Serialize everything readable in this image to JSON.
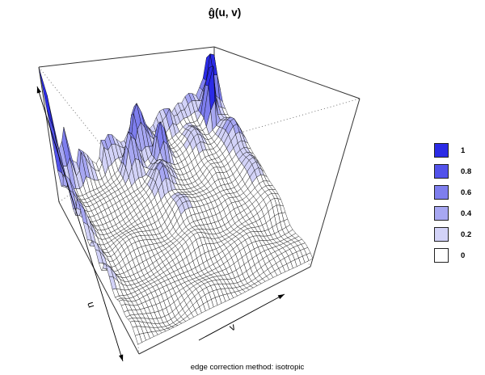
{
  "title": "ĝ(u, v)",
  "caption": "edge correction method: isotropic",
  "axis_labels": {
    "u": "u",
    "v": "v"
  },
  "legend": {
    "entries": [
      {
        "label": "1",
        "color": "#2b2be6"
      },
      {
        "label": "0.8",
        "color": "#5252ea"
      },
      {
        "label": "0.6",
        "color": "#7e7eee"
      },
      {
        "label": "0.4",
        "color": "#a7a7f2"
      },
      {
        "label": "0.2",
        "color": "#d3d3f8"
      },
      {
        "label": "0",
        "color": "#ffffff"
      }
    ]
  },
  "chart_data": {
    "type": "surface3d",
    "title": "ĝ(u, v)",
    "xlabel": "v",
    "ylabel": "u",
    "zlim": [
      0,
      1
    ],
    "legend_labels": [
      "1",
      "0.8",
      "0.6",
      "0.4",
      "0.2",
      "0"
    ],
    "colors": [
      "#2b2be6",
      "#5252ea",
      "#7e7eee",
      "#a7a7f2",
      "#d3d3f8",
      "#ffffff"
    ],
    "thresholds": [
      0.7,
      0.55,
      0.4,
      0.26,
      0.135
    ],
    "grid": {
      "nu": 36,
      "nv": 44
    },
    "model": {
      "floor": {
        "base": 0.05,
        "ripples": [
          {
            "amp": 0.028,
            "fu": 21,
            "pu": 1.0,
            "fv": 13,
            "pv": 2.0
          },
          {
            "amp": 0.018,
            "fu": 9,
            "pu": 0.3,
            "fv": 17,
            "pv": 1.0
          }
        ]
      },
      "back_wall": {
        "a": 0.24,
        "su": 0.05,
        "f": 38,
        "ph": 1.2
      },
      "ridges": [
        {
          "at": 0.0,
          "sv": 0.055,
          "a": 0.4,
          "p": 1.1,
          "f": 40,
          "ph": 1.3
        },
        {
          "at": 0.52,
          "sv": 0.07,
          "a": 0.3,
          "p": 1.6,
          "f": 30,
          "ph": 0.2
        },
        {
          "at": 0.945,
          "sv": 0.05,
          "a": 0.44,
          "p": 1.8,
          "f": 28,
          "ph": 0.8
        },
        {
          "at": 0.77,
          "sv": 0.045,
          "a": 0.2,
          "p": 2.0,
          "f": 33,
          "ph": 2.0
        }
      ],
      "peaks": [
        {
          "u": 0.0,
          "v": 0.0,
          "su": 0.042,
          "sv": 0.042,
          "h": 0.96
        },
        {
          "u": 0.02,
          "v": 0.965,
          "su": 0.05,
          "sv": 0.035,
          "h": 0.95
        },
        {
          "u": 0.1,
          "v": 0.905,
          "su": 0.042,
          "sv": 0.028,
          "h": 0.88
        },
        {
          "u": 0.05,
          "v": 0.5,
          "su": 0.055,
          "sv": 0.048,
          "h": 0.5
        },
        {
          "u": 0.16,
          "v": 0.57,
          "su": 0.05,
          "sv": 0.042,
          "h": 0.44
        },
        {
          "u": 0.125,
          "v": 0.415,
          "su": 0.05,
          "sv": 0.045,
          "h": 0.38
        },
        {
          "u": 0.29,
          "v": 0.5,
          "su": 0.06,
          "sv": 0.05,
          "h": 0.22
        },
        {
          "u": 0.015,
          "v": 0.165,
          "su": 0.04,
          "sv": 0.033,
          "h": 0.32
        },
        {
          "u": 0.01,
          "v": 0.3,
          "su": 0.04,
          "sv": 0.03,
          "h": 0.26
        },
        {
          "u": 0.02,
          "v": 0.7,
          "su": 0.04,
          "sv": 0.033,
          "h": 0.28
        },
        {
          "u": 0.0,
          "v": 0.085,
          "su": 0.035,
          "sv": 0.03,
          "h": 0.48
        }
      ]
    }
  }
}
